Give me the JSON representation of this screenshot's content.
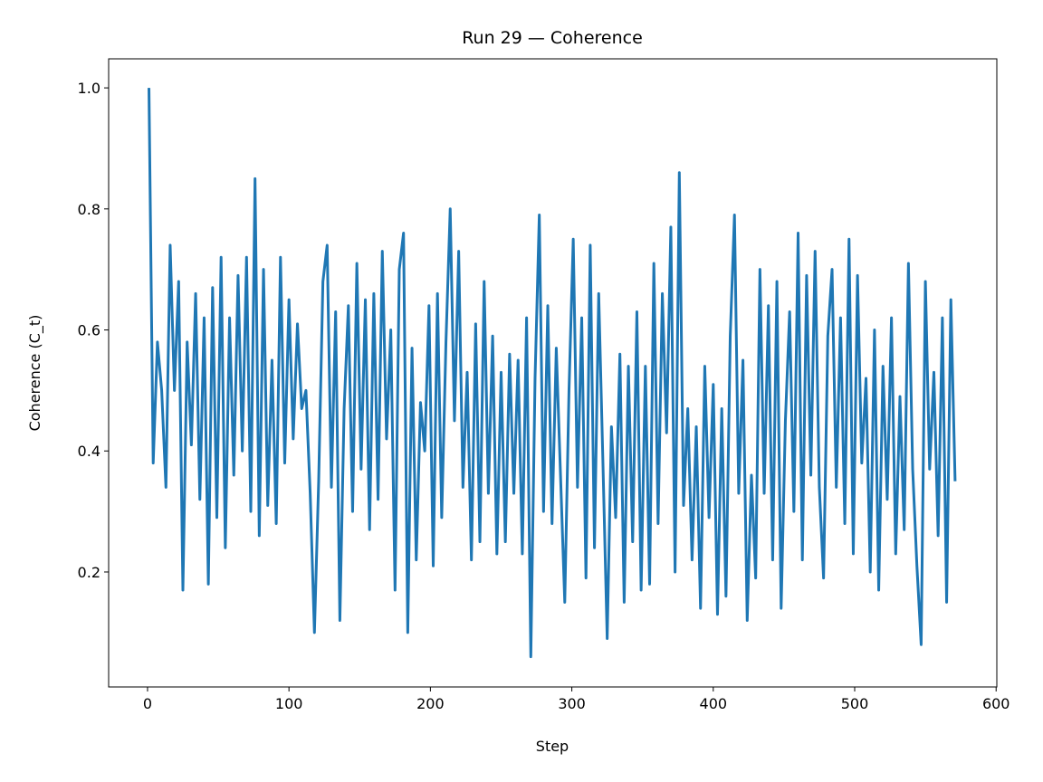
{
  "chart_data": {
    "type": "line",
    "title": "Run 29 — Coherence",
    "xlabel": "Step",
    "ylabel": "Coherence (C_t)",
    "x": [
      1,
      4,
      7,
      10,
      13,
      16,
      19,
      22,
      25,
      28,
      31,
      34,
      37,
      40,
      43,
      46,
      49,
      52,
      55,
      58,
      61,
      64,
      67,
      70,
      73,
      76,
      79,
      82,
      85,
      88,
      91,
      94,
      97,
      100,
      103,
      106,
      109,
      112,
      115,
      118,
      121,
      124,
      127,
      130,
      133,
      136,
      139,
      142,
      145,
      148,
      151,
      154,
      157,
      160,
      163,
      166,
      169,
      172,
      175,
      178,
      181,
      184,
      187,
      190,
      193,
      196,
      199,
      202,
      205,
      208,
      211,
      214,
      217,
      220,
      223,
      226,
      229,
      232,
      235,
      238,
      241,
      244,
      247,
      250,
      253,
      256,
      259,
      262,
      265,
      268,
      271,
      274,
      277,
      280,
      283,
      286,
      289,
      292,
      295,
      298,
      301,
      304,
      307,
      310,
      313,
      316,
      319,
      322,
      325,
      328,
      331,
      334,
      337,
      340,
      343,
      346,
      349,
      352,
      355,
      358,
      361,
      364,
      367,
      370,
      373,
      376,
      379,
      382,
      385,
      388,
      391,
      394,
      397,
      400,
      403,
      406,
      409,
      412,
      415,
      418,
      421,
      424,
      427,
      430,
      433,
      436,
      439,
      442,
      445,
      448,
      451,
      454,
      457,
      460,
      463,
      466,
      469,
      472,
      475,
      478,
      481,
      484,
      487,
      490,
      493,
      496,
      499,
      502,
      505,
      508,
      511,
      514,
      517,
      520,
      523,
      526,
      529,
      532,
      535,
      538,
      541,
      544,
      547,
      550,
      553,
      556,
      559,
      562,
      565,
      568,
      571
    ],
    "series": [
      {
        "name": "C_t",
        "color": "#1f77b4",
        "values": [
          1.0,
          0.38,
          0.58,
          0.5,
          0.34,
          0.74,
          0.5,
          0.68,
          0.17,
          0.58,
          0.41,
          0.66,
          0.32,
          0.62,
          0.18,
          0.67,
          0.29,
          0.72,
          0.24,
          0.62,
          0.36,
          0.69,
          0.4,
          0.72,
          0.3,
          0.85,
          0.26,
          0.7,
          0.31,
          0.55,
          0.28,
          0.72,
          0.38,
          0.65,
          0.42,
          0.61,
          0.47,
          0.5,
          0.33,
          0.1,
          0.35,
          0.68,
          0.74,
          0.34,
          0.63,
          0.12,
          0.47,
          0.64,
          0.3,
          0.71,
          0.37,
          0.65,
          0.27,
          0.66,
          0.32,
          0.73,
          0.42,
          0.6,
          0.17,
          0.7,
          0.76,
          0.1,
          0.57,
          0.22,
          0.48,
          0.4,
          0.64,
          0.21,
          0.66,
          0.29,
          0.58,
          0.8,
          0.45,
          0.73,
          0.34,
          0.53,
          0.22,
          0.61,
          0.25,
          0.68,
          0.33,
          0.59,
          0.23,
          0.53,
          0.25,
          0.56,
          0.33,
          0.55,
          0.23,
          0.62,
          0.06,
          0.52,
          0.79,
          0.3,
          0.64,
          0.28,
          0.57,
          0.36,
          0.15,
          0.5,
          0.75,
          0.34,
          0.62,
          0.19,
          0.74,
          0.24,
          0.66,
          0.38,
          0.09,
          0.44,
          0.29,
          0.56,
          0.15,
          0.54,
          0.25,
          0.63,
          0.17,
          0.54,
          0.18,
          0.71,
          0.28,
          0.66,
          0.43,
          0.77,
          0.2,
          0.86,
          0.31,
          0.47,
          0.22,
          0.44,
          0.14,
          0.54,
          0.29,
          0.51,
          0.13,
          0.47,
          0.16,
          0.59,
          0.79,
          0.33,
          0.55,
          0.12,
          0.36,
          0.19,
          0.7,
          0.33,
          0.64,
          0.22,
          0.68,
          0.14,
          0.45,
          0.63,
          0.3,
          0.76,
          0.22,
          0.69,
          0.36,
          0.73,
          0.34,
          0.19,
          0.59,
          0.7,
          0.34,
          0.62,
          0.28,
          0.75,
          0.23,
          0.69,
          0.38,
          0.52,
          0.2,
          0.6,
          0.17,
          0.54,
          0.32,
          0.62,
          0.23,
          0.49,
          0.27,
          0.71,
          0.37,
          0.21,
          0.08,
          0.68,
          0.37,
          0.53,
          0.26,
          0.62,
          0.15,
          0.65,
          0.35
        ]
      }
    ],
    "xlim": [
      -27.5,
      600.5
    ],
    "xticks": [
      0,
      100,
      200,
      300,
      400,
      500,
      600
    ],
    "ylim": [
      0.01,
      1.048
    ],
    "yticks": [
      0.2,
      0.4,
      0.6,
      0.8,
      {
        "value": 1,
        "label": "1.0"
      }
    ]
  }
}
